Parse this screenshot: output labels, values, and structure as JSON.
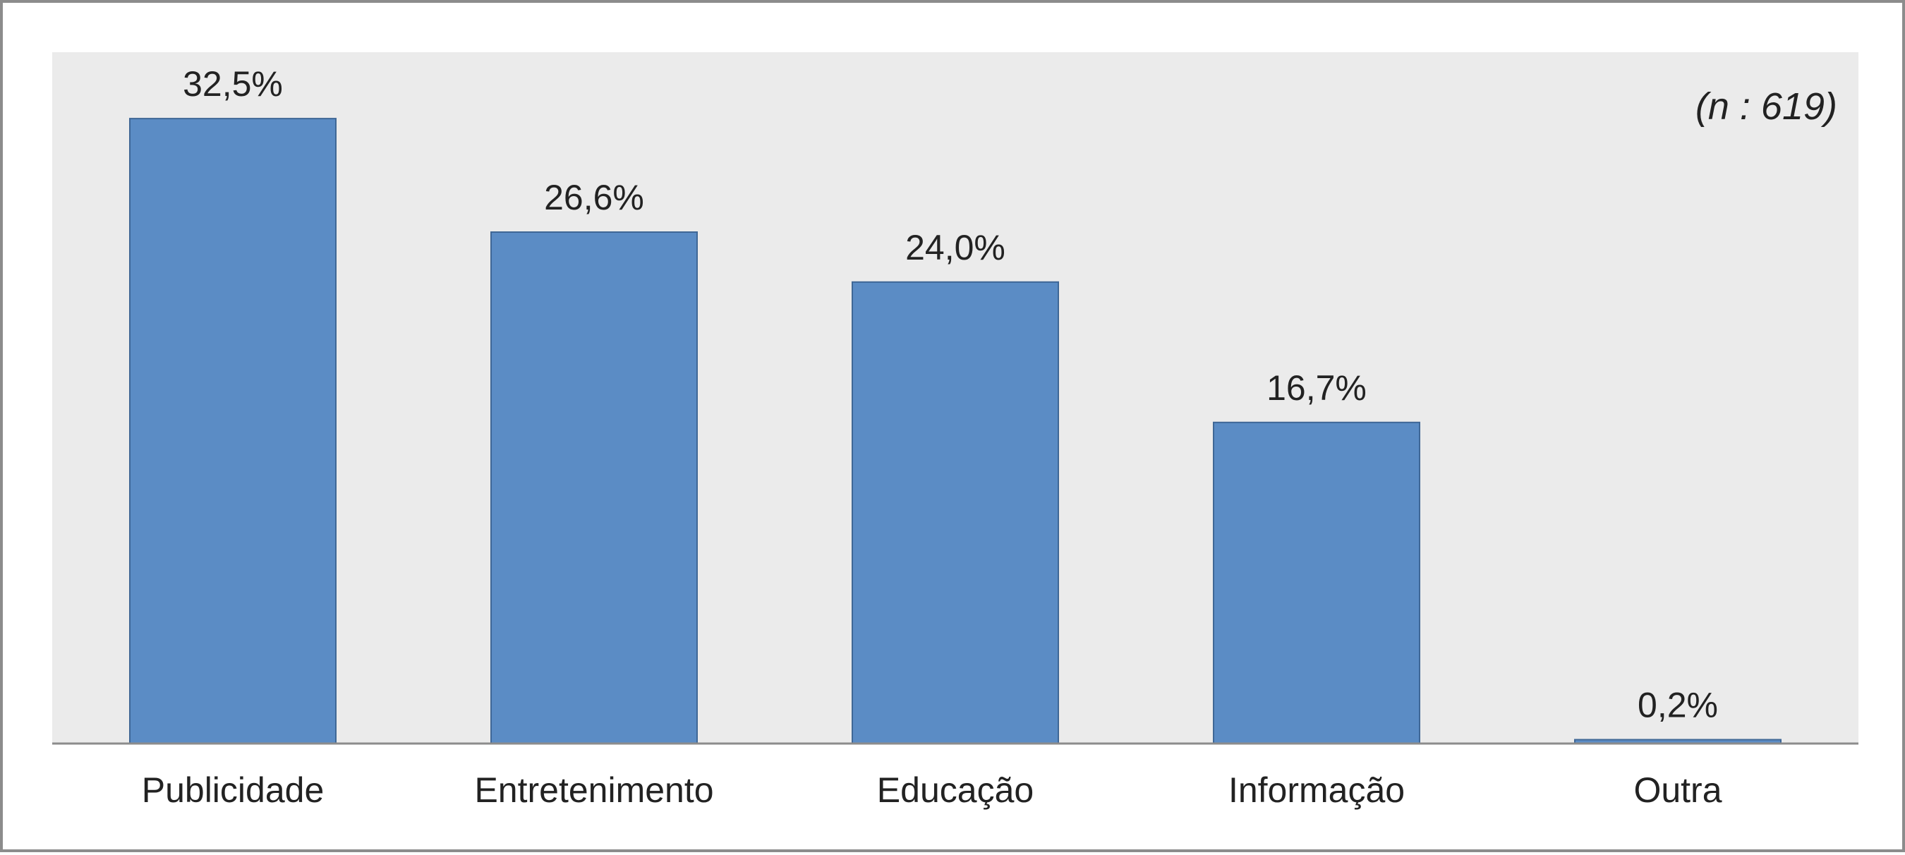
{
  "chart_data": {
    "type": "bar",
    "categories": [
      "Publicidade",
      "Entretenimento",
      "Educação",
      "Informação",
      "Outra"
    ],
    "values": [
      32.5,
      26.6,
      24.0,
      16.7,
      0.2
    ],
    "value_labels": [
      "32,5%",
      "26,6%",
      "24,0%",
      "16,7%",
      "0,2%"
    ],
    "annotation": "(n : 619)",
    "ylim": [
      0,
      35
    ],
    "grid": false,
    "legend": "none",
    "colors": {
      "bar_fill": "#5b8cc5",
      "bar_stroke": "#3f6796",
      "plot_background": "#ebebeb",
      "axis": "#8c8c8c"
    }
  }
}
